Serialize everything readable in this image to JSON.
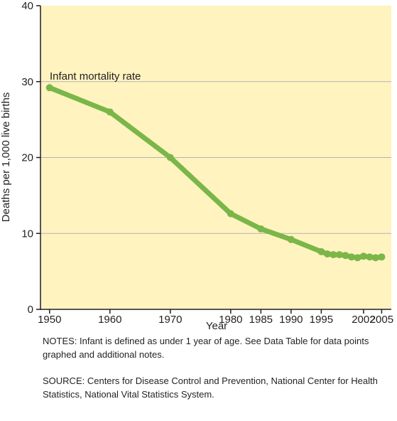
{
  "chart_data": {
    "type": "line",
    "title": "",
    "xlabel": "Year",
    "ylabel": "Deaths per 1,000 live births",
    "ylim": [
      0,
      40
    ],
    "yticks": [
      0,
      10,
      20,
      30,
      40
    ],
    "xticks": [
      1950,
      1960,
      1970,
      1980,
      1985,
      1990,
      1995,
      2002,
      2005
    ],
    "grid": true,
    "series": [
      {
        "name": "Infant mortality rate",
        "x": [
          1950,
          1960,
          1970,
          1980,
          1985,
          1990,
          1995,
          1996,
          1997,
          1998,
          1999,
          2000,
          2001,
          2002,
          2003,
          2004,
          2005
        ],
        "values": [
          29.2,
          26.0,
          20.0,
          12.6,
          10.6,
          9.2,
          7.6,
          7.3,
          7.2,
          7.2,
          7.1,
          6.9,
          6.8,
          7.0,
          6.9,
          6.8,
          6.9
        ]
      }
    ],
    "colors": {
      "line": "#7ab648",
      "plot_bg": "#fff3bf",
      "grid": "#b3b3b3",
      "axis": "#231f20"
    }
  },
  "notes": "NOTES: Infant is defined as under 1 year of age. See Data Table for data points graphed and additional notes.",
  "source": "SOURCE: Centers for Disease Control and Prevention, National Center for Health Statistics, National Vital Statistics System."
}
